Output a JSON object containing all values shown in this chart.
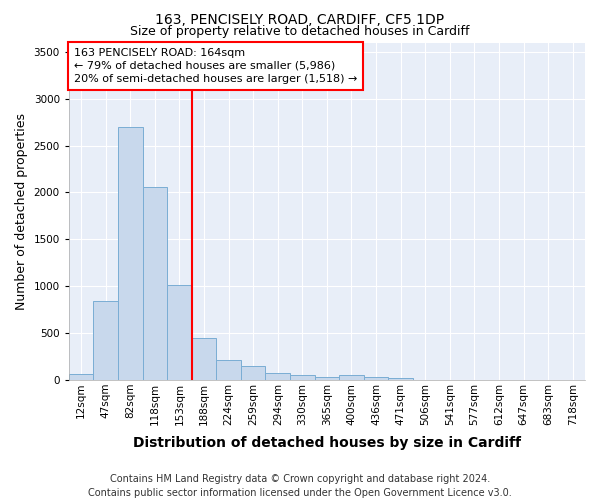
{
  "title": "163, PENCISELY ROAD, CARDIFF, CF5 1DP",
  "subtitle": "Size of property relative to detached houses in Cardiff",
  "xlabel": "Distribution of detached houses by size in Cardiff",
  "ylabel": "Number of detached properties",
  "categories": [
    "12sqm",
    "47sqm",
    "82sqm",
    "118sqm",
    "153sqm",
    "188sqm",
    "224sqm",
    "259sqm",
    "294sqm",
    "330sqm",
    "365sqm",
    "400sqm",
    "436sqm",
    "471sqm",
    "506sqm",
    "541sqm",
    "577sqm",
    "612sqm",
    "647sqm",
    "683sqm",
    "718sqm"
  ],
  "values": [
    60,
    840,
    2700,
    2060,
    1010,
    450,
    210,
    150,
    75,
    50,
    30,
    50,
    30,
    20,
    5,
    3,
    2,
    1,
    1,
    1,
    1
  ],
  "bar_color": "#c8d8ec",
  "bar_edge_color": "#7aadd4",
  "red_line_bin_index": 4,
  "annotation_text": "163 PENCISELY ROAD: 164sqm\n← 79% of detached houses are smaller (5,986)\n20% of semi-detached houses are larger (1,518) →",
  "annotation_box_facecolor": "white",
  "annotation_box_edgecolor": "red",
  "ylim": [
    0,
    3600
  ],
  "yticks": [
    0,
    500,
    1000,
    1500,
    2000,
    2500,
    3000,
    3500
  ],
  "footer": "Contains HM Land Registry data © Crown copyright and database right 2024.\nContains public sector information licensed under the Open Government Licence v3.0.",
  "fig_facecolor": "#ffffff",
  "axes_facecolor": "#e8eef8",
  "grid_color": "#ffffff",
  "title_fontsize": 10,
  "subtitle_fontsize": 9,
  "axis_label_fontsize": 9,
  "tick_fontsize": 7.5,
  "footer_fontsize": 7,
  "annotation_fontsize": 8
}
